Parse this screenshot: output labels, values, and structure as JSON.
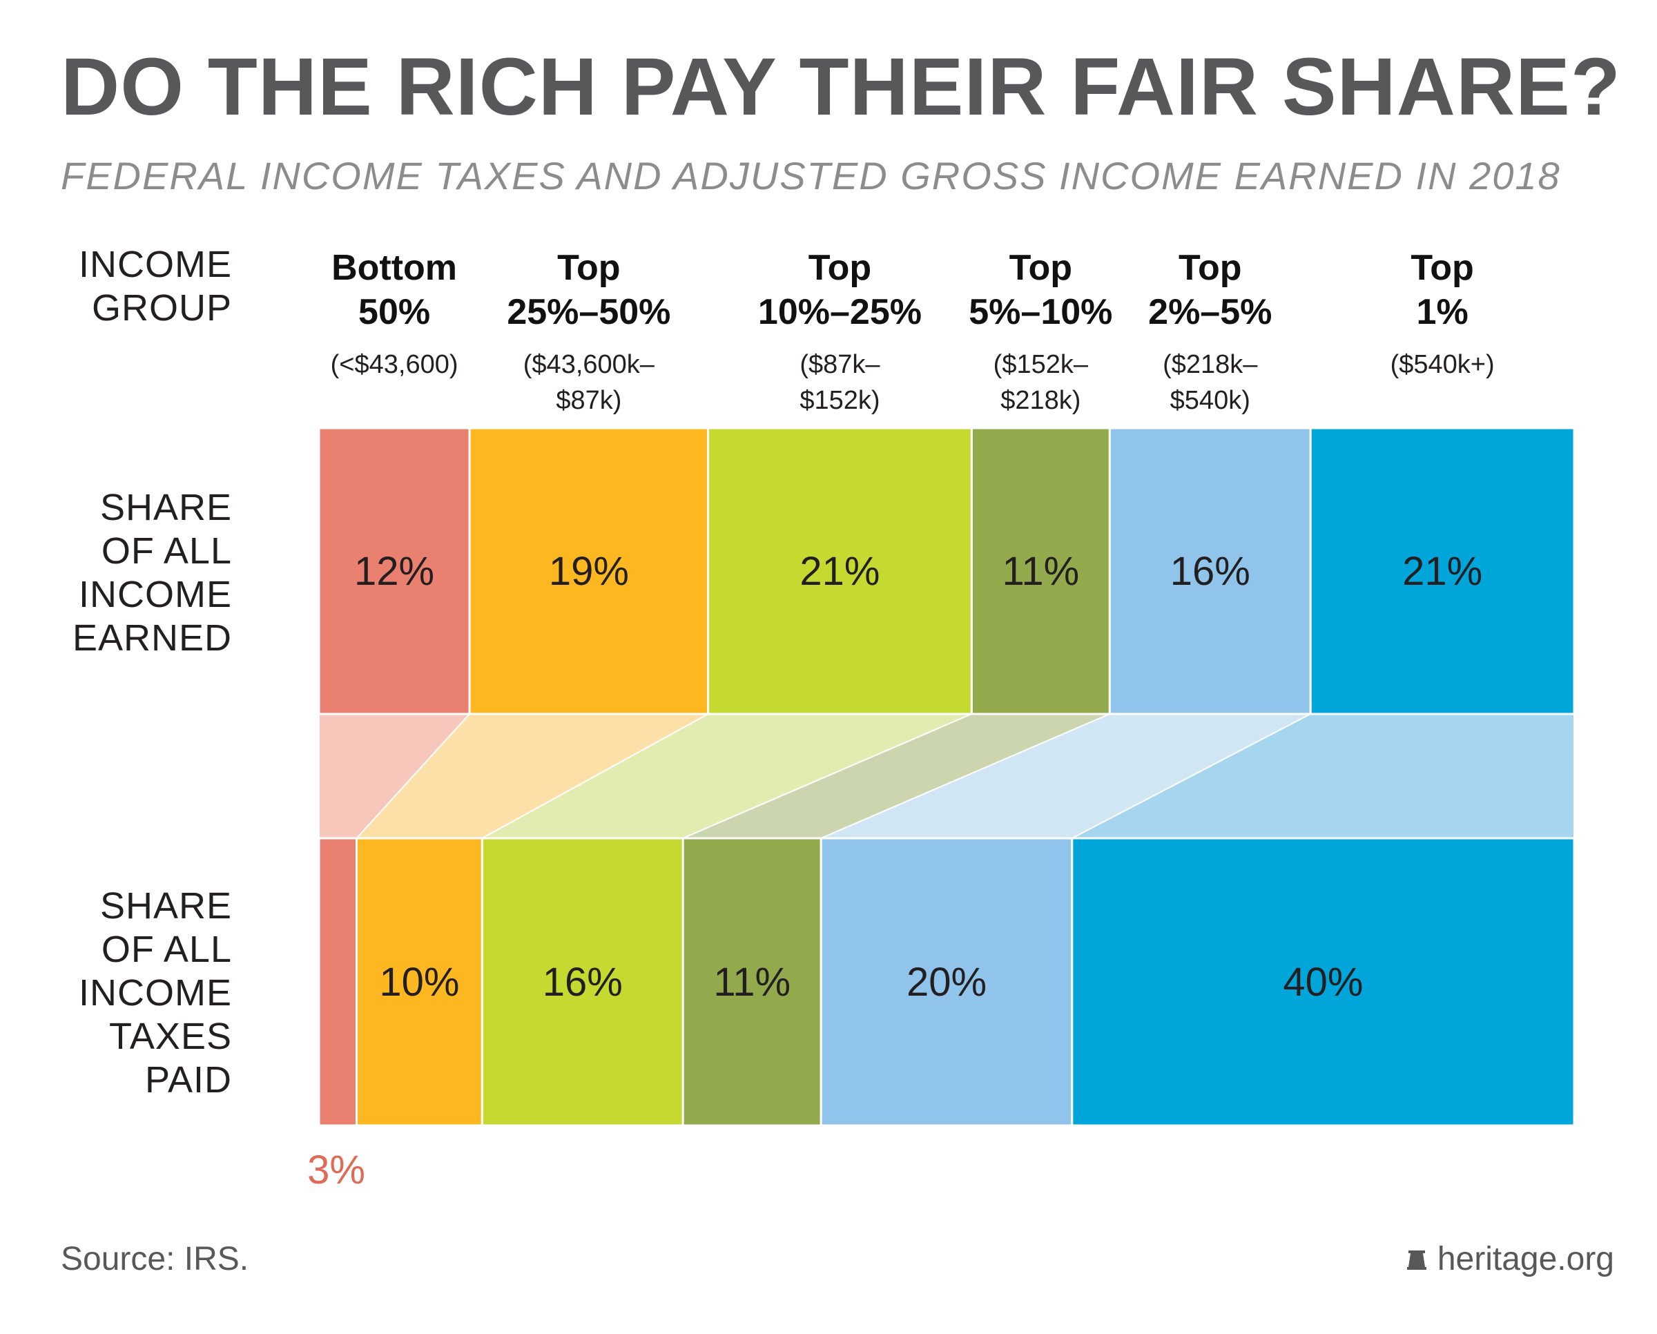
{
  "title": "DO THE RICH PAY THEIR FAIR SHARE?",
  "subtitle": "FEDERAL INCOME TAXES AND ADJUSTED GROSS INCOME EARNED IN 2018",
  "row_labels": {
    "group": "INCOME\nGROUP",
    "income": "SHARE\nOF ALL\nINCOME\nEARNED",
    "taxes": "SHARE\nOF ALL\nINCOME\nTAXES\nPAID"
  },
  "footer": {
    "source": "Source: IRS.",
    "brand": "heritage.org",
    "brand_icon": "bell-icon"
  },
  "chart_data": {
    "type": "bar",
    "orientation": "horizontal-stacked-100",
    "categories": [
      "Bottom 50%",
      "Top 25%–50%",
      "Top 10%–25%",
      "Top 5%–10%",
      "Top 2%–5%",
      "Top 1%"
    ],
    "group_names": [
      "Bottom\n50%",
      "Top\n25%–50%",
      "Top\n10%–25%",
      "Top\n5%–10%",
      "Top\n2%–5%",
      "Top\n1%"
    ],
    "group_ranges": [
      "(<$43,600)",
      "($43,600k–\n$87k)",
      "($87k–\n$152k)",
      "($152k–\n$218k)",
      "($218k–\n$540k)",
      "($540k+)"
    ],
    "series": [
      {
        "name": "SHARE OF ALL INCOME EARNED",
        "values": [
          12,
          19,
          21,
          11,
          16,
          21
        ],
        "labels": [
          "12%",
          "19%",
          "21%",
          "11%",
          "16%",
          "21%"
        ]
      },
      {
        "name": "SHARE OF ALL INCOME TAXES PAID",
        "values": [
          3,
          10,
          16,
          11,
          20,
          40
        ],
        "labels": [
          "3%",
          "10%",
          "16%",
          "11%",
          "20%",
          "40%"
        ]
      }
    ],
    "colors": [
      "#ea8170",
      "#fcb721",
      "#c5d930",
      "#92a94c",
      "#90c4ea",
      "#00a5da"
    ],
    "connector_colors": [
      "#f6c7ba",
      "#fde0a8",
      "#e2ecb0",
      "#cbd6ae",
      "#d1e6f5",
      "#a5d5ef"
    ],
    "label_color_outside": "#e06a55"
  }
}
